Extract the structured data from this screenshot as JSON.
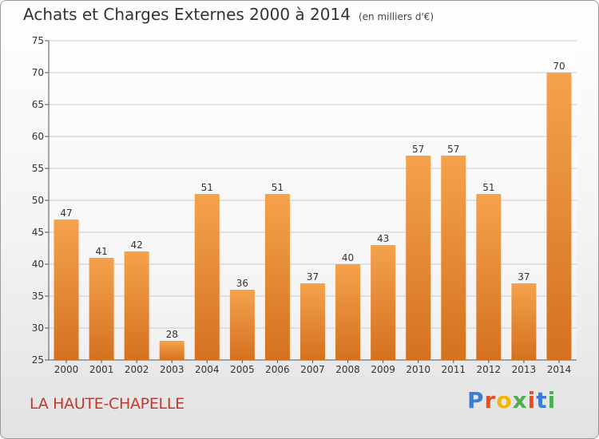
{
  "title": "Achats et Charges Externes 2000 à 2014",
  "subtitle": "(en milliers d'€)",
  "commune": "LA HAUTE-CHAPELLE",
  "logo": "Proxiti",
  "colors": {
    "bar_top": "#f5a24d",
    "bar_bottom": "#d4711f",
    "commune_text": "#c0392b",
    "grid": "#cccccc"
  },
  "chart_data": {
    "type": "bar",
    "title": "Achats et Charges Externes 2000 à 2014",
    "subtitle": "(en milliers d'€)",
    "categories": [
      "2000",
      "2001",
      "2002",
      "2003",
      "2004",
      "2005",
      "2006",
      "2007",
      "2008",
      "2009",
      "2010",
      "2011",
      "2012",
      "2013",
      "2014"
    ],
    "values": [
      47,
      41,
      42,
      28,
      51,
      36,
      51,
      37,
      40,
      43,
      57,
      57,
      51,
      37,
      70
    ],
    "ylim": [
      25,
      75
    ],
    "yticks": [
      25,
      30,
      35,
      40,
      45,
      50,
      55,
      60,
      65,
      70,
      75
    ],
    "grid": true,
    "data_labels": true
  }
}
